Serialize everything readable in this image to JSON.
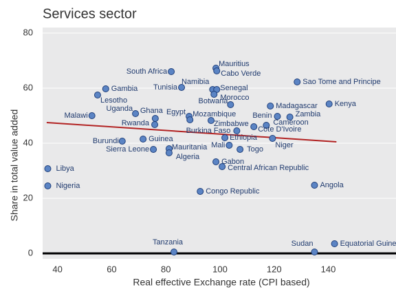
{
  "chart_data": {
    "type": "scatter",
    "title": "Services sector",
    "xlabel": "Real effective Exchange rate (CPI based)",
    "ylabel": "Share in total value added",
    "xlim": [
      34.5,
      165
    ],
    "ylim": [
      -2,
      82
    ],
    "xticks": [
      40,
      60,
      80,
      100,
      120,
      140
    ],
    "yticks": [
      0,
      20,
      40,
      60,
      80
    ],
    "grid": true,
    "color": "#5b84c4",
    "labels": [
      "South Africa",
      "Mauritius",
      "Cabo Verde",
      "Namibia",
      "Tunisia",
      "Senegal",
      "Morocco",
      "Sao Tome and Principe",
      "Gambia",
      "Lesotho",
      "Botwana",
      "Madagascar",
      "Kenya",
      "Uganda",
      "Ghana",
      "Egypt",
      "Mozambique",
      "Malawi",
      "Zambia",
      "Benin",
      "Rwanda",
      "Zimbabwe",
      "Cameroon",
      "Cote D'Ivoire",
      "Burkina Faso",
      "Niger",
      "Ethiopia",
      "Guinea",
      "Burundi",
      "Mali",
      "Sierra Leone",
      "Mauritania",
      "Algeria",
      "Togo",
      "Gabon",
      "Central African Republic",
      "Congo Republic",
      "Angola",
      "Libya",
      "Nigeria",
      "Tanzania",
      "Sudan",
      "Equatorial Guinea"
    ],
    "x": [
      82.0,
      98.5,
      98.8,
      97.3,
      85.8,
      98.8,
      97.8,
      128.5,
      57.8,
      54.8,
      103.9,
      118.6,
      140.3,
      68.8,
      76.1,
      88.6,
      88.9,
      52.7,
      125.8,
      121.2,
      75.9,
      96.7,
      117.1,
      112.5,
      106.2,
      119.4,
      101.8,
      71.6,
      63.9,
      103.4,
      75.4,
      81.2,
      81.2,
      107.4,
      98.5,
      100.8,
      92.7,
      134.9,
      36.4,
      36.4,
      83.0,
      134.9,
      142.3
    ],
    "values": [
      66,
      67.25,
      66.25,
      59.5,
      60.25,
      59.5,
      57.75,
      62.25,
      59.75,
      57.5,
      54,
      53.5,
      54.25,
      50.75,
      49,
      49.75,
      48.5,
      50,
      49.5,
      49.75,
      46.75,
      48.25,
      46.5,
      46,
      44.5,
      41.75,
      42,
      41.5,
      40.75,
      39.25,
      37.75,
      38,
      36.5,
      37.75,
      33.25,
      31.5,
      22.5,
      24.75,
      30.75,
      24.5,
      0.5,
      0.5,
      3.5
    ],
    "trend": {
      "x": [
        36,
        143
      ],
      "values": [
        47.5,
        40.5
      ],
      "color": "#b22222"
    }
  }
}
